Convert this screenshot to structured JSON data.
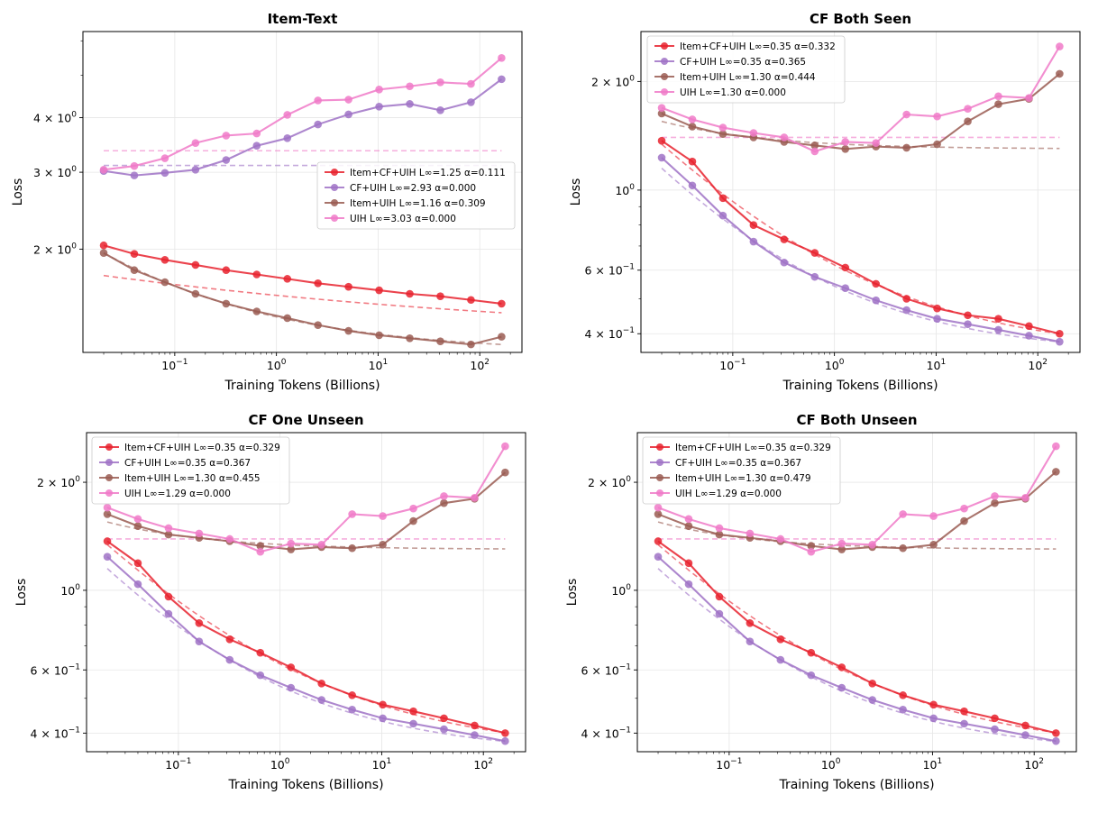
{
  "colors": {
    "item_cf_uih": "#e8222e",
    "cf_uih": "#9f72c6",
    "item_uih": "#9a5c52",
    "uih": "#f07ac8",
    "grid": "#e6e6e6"
  },
  "chart_data": [
    {
      "type": "line",
      "title": "Item-Text",
      "xlabel": "Training Tokens (Billions)",
      "ylabel": "Loss",
      "xscale": "log",
      "yscale": "log",
      "xlim": [
        0.0125,
        260
      ],
      "ylim": [
        1.16,
        6.3
      ],
      "grid": true,
      "legend_position": "center-right",
      "x": [
        0.02,
        0.04,
        0.08,
        0.16,
        0.32,
        0.64,
        1.28,
        2.56,
        5.12,
        10.24,
        20.48,
        40.96,
        81.92,
        163.84
      ],
      "xtick_labels": [
        {
          "value": 0.1,
          "base": "10",
          "exp": "−1"
        },
        {
          "value": 1,
          "base": "10",
          "exp": "0"
        },
        {
          "value": 10,
          "base": "10",
          "exp": "1"
        },
        {
          "value": 100,
          "base": "10",
          "exp": "2"
        }
      ],
      "ytick_labels": [
        {
          "value": 2,
          "mantissa": "2",
          "exp": "0"
        },
        {
          "value": 3,
          "mantissa": "3",
          "exp": "0"
        },
        {
          "value": 4,
          "mantissa": "4",
          "exp": "0"
        }
      ],
      "series": [
        {
          "name": "Item+CF+UIH L∞=1.25 α=0.111",
          "color_key": "item_cf_uih",
          "values": [
            2.04,
            1.95,
            1.89,
            1.84,
            1.79,
            1.75,
            1.71,
            1.67,
            1.64,
            1.61,
            1.58,
            1.56,
            1.53,
            1.5
          ],
          "fit": {
            "type": "powerlaw",
            "linf": 1.25,
            "a": 0.49,
            "alpha": 0.111,
            "x0": 0.02
          }
        },
        {
          "name": "CF+UIH L∞=2.93 α=0.000",
          "color_key": "cf_uih",
          "values": [
            3.02,
            2.95,
            2.99,
            3.04,
            3.2,
            3.45,
            3.59,
            3.86,
            4.07,
            4.24,
            4.3,
            4.16,
            4.34,
            4.9
          ],
          "fit": {
            "type": "constant",
            "value": 3.11
          }
        },
        {
          "name": "Item+UIH L∞=1.16 α=0.309",
          "color_key": "item_uih",
          "values": [
            1.96,
            1.79,
            1.68,
            1.58,
            1.5,
            1.44,
            1.39,
            1.34,
            1.3,
            1.27,
            1.25,
            1.23,
            1.21,
            1.26
          ],
          "fit": {
            "type": "powerlaw",
            "linf": 1.16,
            "a": 0.8,
            "alpha": 0.309,
            "x0": 0.02
          }
        },
        {
          "name": "UIH L∞=3.03 α=0.000",
          "color_key": "uih",
          "values": [
            3.04,
            3.1,
            3.23,
            3.5,
            3.64,
            3.68,
            4.06,
            4.38,
            4.4,
            4.64,
            4.72,
            4.82,
            4.78,
            5.48
          ],
          "fit": {
            "type": "constant",
            "value": 3.36
          }
        }
      ]
    },
    {
      "type": "line",
      "title": "CF Both Seen",
      "xlabel": "Training Tokens (Billions)",
      "ylabel": "Loss",
      "xscale": "log",
      "yscale": "log",
      "xlim": [
        0.0125,
        260
      ],
      "ylim": [
        0.355,
        2.75
      ],
      "grid": true,
      "legend_position": "top-left",
      "x": [
        0.02,
        0.04,
        0.08,
        0.16,
        0.32,
        0.64,
        1.28,
        2.56,
        5.12,
        10.24,
        20.48,
        40.96,
        81.92,
        163.84
      ],
      "xtick_labels": [
        {
          "value": 0.1,
          "base": "10",
          "exp": "−1"
        },
        {
          "value": 1,
          "base": "10",
          "exp": "0"
        },
        {
          "value": 10,
          "base": "10",
          "exp": "1"
        },
        {
          "value": 100,
          "base": "10",
          "exp": "2"
        }
      ],
      "ytick_labels": [
        {
          "value": 0.4,
          "mantissa": "4",
          "exp": "−1"
        },
        {
          "value": 0.6,
          "mantissa": "6",
          "exp": "−1"
        },
        {
          "value": 1,
          "plain": "10",
          "exp": "0"
        },
        {
          "value": 2,
          "mantissa": "2",
          "exp": "0"
        }
      ],
      "series": [
        {
          "name": "Item+CF+UIH L∞=0.35 α=0.332",
          "color_key": "item_cf_uih",
          "values": [
            1.37,
            1.2,
            0.95,
            0.8,
            0.73,
            0.67,
            0.61,
            0.55,
            0.5,
            0.47,
            0.45,
            0.44,
            0.42,
            0.4
          ],
          "fit": {
            "type": "powerlaw",
            "linf": 0.35,
            "a": 0.99,
            "alpha": 0.332,
            "x0": 0.02
          }
        },
        {
          "name": "CF+UIH L∞=0.35 α=0.365",
          "color_key": "cf_uih",
          "values": [
            1.23,
            1.03,
            0.85,
            0.72,
            0.63,
            0.575,
            0.535,
            0.495,
            0.465,
            0.44,
            0.425,
            0.41,
            0.395,
            0.38
          ],
          "fit": {
            "type": "powerlaw",
            "linf": 0.35,
            "a": 0.8,
            "alpha": 0.365,
            "x0": 0.02
          }
        },
        {
          "name": "Item+UIH L∞=1.30 α=0.444",
          "color_key": "item_uih",
          "values": [
            1.63,
            1.5,
            1.43,
            1.4,
            1.36,
            1.33,
            1.3,
            1.32,
            1.31,
            1.34,
            1.55,
            1.73,
            1.79,
            2.1
          ],
          "fit": {
            "type": "powerlaw",
            "linf": 1.3,
            "a": 0.25,
            "alpha": 0.444,
            "x0": 0.02
          }
        },
        {
          "name": "UIH L∞=1.30 α=0.000",
          "color_key": "uih",
          "values": [
            1.69,
            1.57,
            1.49,
            1.44,
            1.4,
            1.28,
            1.36,
            1.35,
            1.62,
            1.6,
            1.68,
            1.82,
            1.8,
            2.5
          ],
          "fit": {
            "type": "constant",
            "value": 1.4
          }
        }
      ]
    },
    {
      "type": "line",
      "title": "CF One Unseen",
      "xlabel": "Training Tokens (Billions)",
      "ylabel": "Loss",
      "xscale": "log",
      "yscale": "log",
      "xlim": [
        0.0125,
        260
      ],
      "ylim": [
        0.355,
        2.75
      ],
      "grid": true,
      "legend_position": "top-left",
      "x": [
        0.02,
        0.04,
        0.08,
        0.16,
        0.32,
        0.64,
        1.28,
        2.56,
        5.12,
        10.24,
        20.48,
        40.96,
        81.92,
        163.84
      ],
      "xtick_labels": [
        {
          "value": 0.1,
          "base": "10",
          "exp": "−1"
        },
        {
          "value": 1,
          "base": "10",
          "exp": "0"
        },
        {
          "value": 10,
          "base": "10",
          "exp": "1"
        },
        {
          "value": 100,
          "base": "10",
          "exp": "2"
        }
      ],
      "ytick_labels": [
        {
          "value": 0.4,
          "mantissa": "4",
          "exp": "−1"
        },
        {
          "value": 0.6,
          "mantissa": "6",
          "exp": "−1"
        },
        {
          "value": 1,
          "plain": "10",
          "exp": "0"
        },
        {
          "value": 2,
          "mantissa": "2",
          "exp": "0"
        }
      ],
      "series": [
        {
          "name": "Item+CF+UIH L∞=0.35 α=0.329",
          "color_key": "item_cf_uih",
          "values": [
            1.37,
            1.19,
            0.96,
            0.81,
            0.73,
            0.67,
            0.61,
            0.55,
            0.51,
            0.48,
            0.46,
            0.44,
            0.42,
            0.4
          ],
          "fit": {
            "type": "powerlaw",
            "linf": 0.35,
            "a": 0.99,
            "alpha": 0.329,
            "x0": 0.02
          }
        },
        {
          "name": "CF+UIH L∞=0.35 α=0.367",
          "color_key": "cf_uih",
          "values": [
            1.24,
            1.04,
            0.86,
            0.72,
            0.64,
            0.58,
            0.535,
            0.495,
            0.465,
            0.44,
            0.425,
            0.41,
            0.395,
            0.38
          ],
          "fit": {
            "type": "powerlaw",
            "linf": 0.35,
            "a": 0.8,
            "alpha": 0.367,
            "x0": 0.02
          }
        },
        {
          "name": "Item+UIH L∞=1.30 α=0.455",
          "color_key": "item_uih",
          "values": [
            1.63,
            1.51,
            1.43,
            1.4,
            1.37,
            1.33,
            1.3,
            1.32,
            1.31,
            1.34,
            1.56,
            1.75,
            1.8,
            2.13
          ],
          "fit": {
            "type": "powerlaw",
            "linf": 1.3,
            "a": 0.25,
            "alpha": 0.455,
            "x0": 0.02
          }
        },
        {
          "name": "UIH L∞=1.29 α=0.000",
          "color_key": "uih",
          "values": [
            1.7,
            1.58,
            1.49,
            1.44,
            1.39,
            1.28,
            1.35,
            1.34,
            1.63,
            1.61,
            1.69,
            1.83,
            1.81,
            2.52
          ],
          "fit": {
            "type": "constant",
            "value": 1.39
          }
        }
      ]
    },
    {
      "type": "line",
      "title": "CF Both Unseen",
      "xlabel": "Training Tokens (Billions)",
      "ylabel": "Loss",
      "xscale": "log",
      "yscale": "log",
      "xlim": [
        0.0125,
        260
      ],
      "ylim": [
        0.355,
        2.75
      ],
      "grid": true,
      "legend_position": "top-left",
      "x": [
        0.02,
        0.04,
        0.08,
        0.16,
        0.32,
        0.64,
        1.28,
        2.56,
        5.12,
        10.24,
        20.48,
        40.96,
        81.92,
        163.84
      ],
      "xtick_labels": [
        {
          "value": 0.1,
          "base": "10",
          "exp": "−1"
        },
        {
          "value": 1,
          "base": "10",
          "exp": "0"
        },
        {
          "value": 10,
          "base": "10",
          "exp": "1"
        },
        {
          "value": 100,
          "base": "10",
          "exp": "2"
        }
      ],
      "ytick_labels": [
        {
          "value": 0.4,
          "mantissa": "4",
          "exp": "−1"
        },
        {
          "value": 0.6,
          "mantissa": "6",
          "exp": "−1"
        },
        {
          "value": 1,
          "plain": "10",
          "exp": "0"
        },
        {
          "value": 2,
          "mantissa": "2",
          "exp": "0"
        }
      ],
      "series": [
        {
          "name": "Item+CF+UIH L∞=0.35 α=0.329",
          "color_key": "item_cf_uih",
          "values": [
            1.37,
            1.19,
            0.96,
            0.81,
            0.73,
            0.67,
            0.61,
            0.55,
            0.51,
            0.48,
            0.46,
            0.44,
            0.42,
            0.4
          ],
          "fit": {
            "type": "powerlaw",
            "linf": 0.35,
            "a": 0.99,
            "alpha": 0.329,
            "x0": 0.02
          }
        },
        {
          "name": "CF+UIH L∞=0.35 α=0.367",
          "color_key": "cf_uih",
          "values": [
            1.24,
            1.04,
            0.86,
            0.72,
            0.64,
            0.58,
            0.535,
            0.495,
            0.465,
            0.44,
            0.425,
            0.41,
            0.395,
            0.38
          ],
          "fit": {
            "type": "powerlaw",
            "linf": 0.35,
            "a": 0.8,
            "alpha": 0.367,
            "x0": 0.02
          }
        },
        {
          "name": "Item+UIH L∞=1.30 α=0.479",
          "color_key": "item_uih",
          "values": [
            1.63,
            1.51,
            1.43,
            1.4,
            1.37,
            1.33,
            1.3,
            1.32,
            1.31,
            1.34,
            1.56,
            1.75,
            1.8,
            2.14
          ],
          "fit": {
            "type": "powerlaw",
            "linf": 1.3,
            "a": 0.25,
            "alpha": 0.479,
            "x0": 0.02
          }
        },
        {
          "name": "UIH L∞=1.29 α=0.000",
          "color_key": "uih",
          "values": [
            1.7,
            1.58,
            1.49,
            1.44,
            1.39,
            1.28,
            1.35,
            1.34,
            1.63,
            1.61,
            1.69,
            1.83,
            1.81,
            2.52
          ],
          "fit": {
            "type": "constant",
            "value": 1.39
          }
        }
      ]
    }
  ]
}
